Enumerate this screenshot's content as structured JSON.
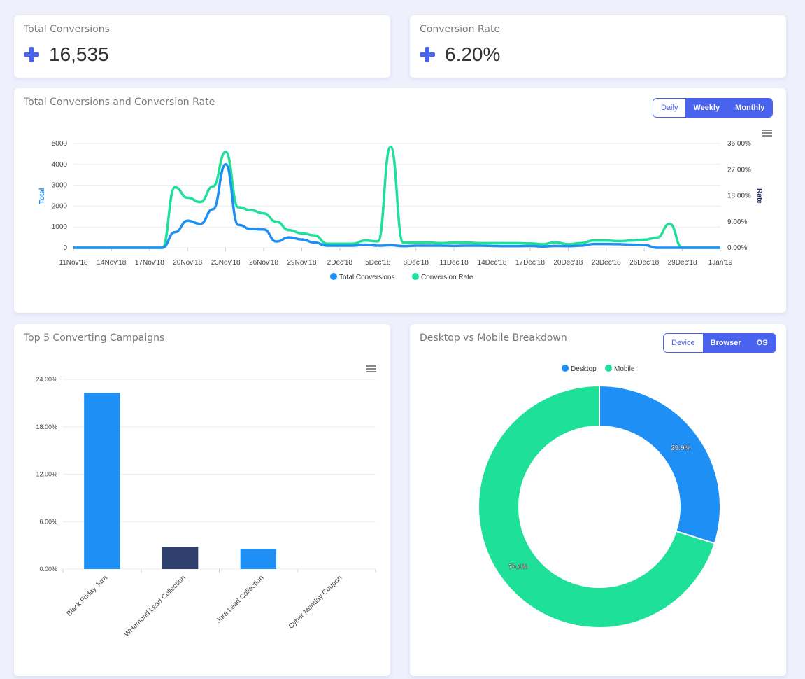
{
  "kpis": [
    {
      "label": "Total Conversions",
      "value": "16,535",
      "icon": "plus-icon"
    },
    {
      "label": "Conversion Rate",
      "value": "6.20%",
      "icon": "plus-icon"
    }
  ],
  "line_card": {
    "title": "Total Conversions and Conversion Rate",
    "toggle": [
      "Daily",
      "Weekly",
      "Monthly"
    ],
    "active": "Daily"
  },
  "bar_card": {
    "title": "Top 5 Converting Campaigns"
  },
  "pie_card": {
    "title": "Desktop vs Mobile Breakdown",
    "toggle": [
      "Device",
      "Browser",
      "OS"
    ],
    "active": "Device"
  },
  "colors": {
    "accent": "#4a63ee",
    "blue": "#1e8ff5",
    "green": "#1ee098",
    "navy": "#2e3f6e"
  },
  "chart_data": [
    {
      "type": "line",
      "ylabel": "Total",
      "y2label": "Rate",
      "x_ticks": [
        "11Nov'18",
        "14Nov'18",
        "17Nov'18",
        "20Nov'18",
        "23Nov'18",
        "26Nov'18",
        "29Nov'18",
        "2Dec'18",
        "5Dec'18",
        "8Dec'18",
        "11Dec'18",
        "14Dec'18",
        "17Dec'18",
        "20Dec'18",
        "23Dec'18",
        "26Dec'18",
        "29Dec'18",
        "1Jan'19"
      ],
      "y_ticks": [
        "0",
        "1000",
        "2000",
        "3000",
        "4000",
        "5000"
      ],
      "ylim": [
        0,
        5000
      ],
      "y2_ticks": [
        "0.00%",
        "9.00%",
        "18.00%",
        "27.00%",
        "36.00%"
      ],
      "y2lim": [
        0,
        36
      ],
      "x_start": "11Nov'18",
      "x_end": "1Jan'19",
      "series": [
        {
          "name": "Total Conversions",
          "axis": "left",
          "values": [
            0,
            0,
            0,
            0,
            0,
            0,
            0,
            0,
            750,
            1300,
            1150,
            1850,
            4000,
            1100,
            900,
            880,
            300,
            500,
            400,
            250,
            100,
            100,
            100,
            150,
            100,
            120,
            80,
            100,
            100,
            100,
            90,
            100,
            100,
            90,
            80,
            80,
            90,
            60,
            90,
            80,
            100,
            180,
            180,
            170,
            150,
            130,
            0,
            0,
            0,
            0,
            0,
            0
          ]
        },
        {
          "name": "Conversion Rate",
          "axis": "right",
          "values": [
            0,
            0,
            0,
            0,
            0,
            0,
            0,
            0,
            20.9,
            17.3,
            15.8,
            21.2,
            33.1,
            14.0,
            13.0,
            11.9,
            9.0,
            6.1,
            5.0,
            4.3,
            1.4,
            1.4,
            1.4,
            2.5,
            2.2,
            34.9,
            1.8,
            1.8,
            1.8,
            1.6,
            1.8,
            1.8,
            1.6,
            1.6,
            1.6,
            1.6,
            1.5,
            1.2,
            1.9,
            1.2,
            1.6,
            2.5,
            2.5,
            2.3,
            2.5,
            2.8,
            3.5,
            8.3,
            0,
            0,
            0,
            0
          ]
        }
      ],
      "legend": "bottom",
      "grid": true
    },
    {
      "type": "bar",
      "categories": [
        "Black Friday Jura",
        "WHamond Lead Collection",
        "Jura Lead Collection",
        "Cyber Monday Coupon"
      ],
      "values": [
        22.3,
        2.8,
        2.55,
        0
      ],
      "y_ticks": [
        "0.00%",
        "6.00%",
        "12.00%",
        "18.00%",
        "24.00%"
      ],
      "ylim": [
        0,
        24
      ],
      "grid": true
    },
    {
      "type": "pie",
      "donut": true,
      "labels": [
        "Desktop",
        "Mobile"
      ],
      "values": [
        29.9,
        70.1
      ],
      "data_labels": [
        "29.9%",
        "70.1%"
      ],
      "legend": "top"
    }
  ]
}
